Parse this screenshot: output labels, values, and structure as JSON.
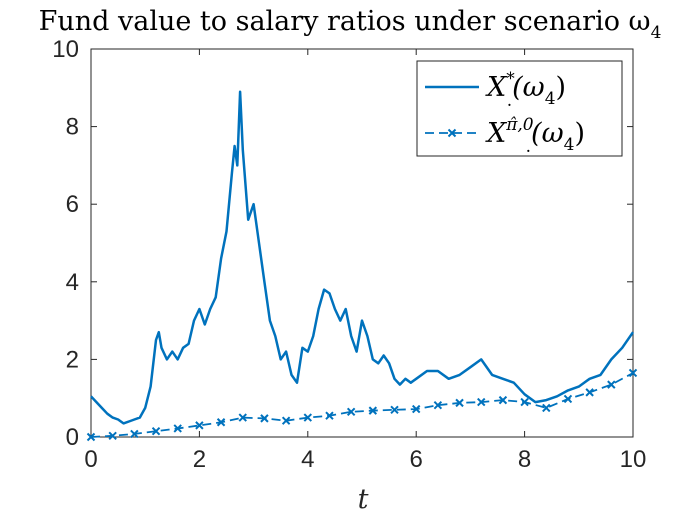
{
  "chart_data": {
    "type": "line",
    "title": "Fund value to salary ratios under scenario ω",
    "title_subscript": "4",
    "xlabel": "t",
    "ylabel": "",
    "xlim": [
      0,
      10
    ],
    "ylim": [
      0,
      10
    ],
    "xticks": [
      "0",
      "2",
      "4",
      "6",
      "8",
      "10"
    ],
    "yticks": [
      "0",
      "2",
      "4",
      "6",
      "8",
      "10"
    ],
    "grid": false,
    "legend_position": "top-right",
    "color": "#0072BD",
    "series": [
      {
        "name": "X*(ω₄)",
        "legend": {
          "base": "X",
          "sub": ".",
          "sup": "*",
          "arg": "(ω",
          "arg_sub": "4",
          "close": ")"
        },
        "line_style": "solid",
        "marker": "none",
        "x": [
          0,
          0.1,
          0.2,
          0.3,
          0.4,
          0.5,
          0.6,
          0.7,
          0.8,
          0.9,
          1.0,
          1.1,
          1.2,
          1.25,
          1.3,
          1.4,
          1.5,
          1.6,
          1.7,
          1.8,
          1.9,
          2.0,
          2.1,
          2.2,
          2.3,
          2.4,
          2.5,
          2.6,
          2.65,
          2.7,
          2.75,
          2.8,
          2.9,
          3.0,
          3.1,
          3.2,
          3.3,
          3.4,
          3.5,
          3.6,
          3.7,
          3.8,
          3.9,
          4.0,
          4.1,
          4.2,
          4.3,
          4.4,
          4.5,
          4.6,
          4.7,
          4.8,
          4.9,
          5.0,
          5.1,
          5.2,
          5.3,
          5.4,
          5.5,
          5.6,
          5.7,
          5.8,
          5.9,
          6.0,
          6.2,
          6.4,
          6.6,
          6.8,
          7.0,
          7.2,
          7.4,
          7.6,
          7.8,
          8.0,
          8.2,
          8.4,
          8.6,
          8.8,
          9.0,
          9.2,
          9.4,
          9.6,
          9.8,
          10.0
        ],
        "y": [
          1.05,
          0.9,
          0.75,
          0.6,
          0.5,
          0.45,
          0.35,
          0.4,
          0.45,
          0.5,
          0.75,
          1.3,
          2.5,
          2.7,
          2.3,
          2.0,
          2.2,
          2.0,
          2.3,
          2.4,
          3.0,
          3.3,
          2.9,
          3.3,
          3.6,
          4.6,
          5.3,
          6.8,
          7.5,
          7.0,
          8.9,
          7.4,
          5.6,
          6.0,
          5.0,
          4.0,
          3.0,
          2.6,
          2.0,
          2.2,
          1.6,
          1.4,
          2.3,
          2.2,
          2.6,
          3.3,
          3.8,
          3.7,
          3.3,
          3.0,
          3.3,
          2.6,
          2.2,
          3.0,
          2.6,
          2.0,
          1.9,
          2.1,
          1.9,
          1.5,
          1.35,
          1.5,
          1.4,
          1.5,
          1.7,
          1.7,
          1.5,
          1.6,
          1.8,
          2.0,
          1.6,
          1.5,
          1.4,
          1.1,
          0.9,
          0.95,
          1.05,
          1.2,
          1.3,
          1.5,
          1.6,
          2.0,
          2.3,
          2.7
        ]
      },
      {
        "name": "X^{π̂,0}(ω₄)",
        "legend": {
          "base": "X",
          "sub": ".",
          "sup": "π̂,0",
          "arg": "(ω",
          "arg_sub": "4",
          "close": ")"
        },
        "line_style": "dashed",
        "marker": "x",
        "x": [
          0,
          0.4,
          0.8,
          1.2,
          1.6,
          2.0,
          2.4,
          2.8,
          3.2,
          3.6,
          4.0,
          4.4,
          4.8,
          5.2,
          5.6,
          6.0,
          6.4,
          6.8,
          7.2,
          7.6,
          8.0,
          8.4,
          8.8,
          9.2,
          9.6,
          10.0
        ],
        "y": [
          0.0,
          0.03,
          0.08,
          0.15,
          0.22,
          0.3,
          0.38,
          0.5,
          0.48,
          0.42,
          0.5,
          0.55,
          0.65,
          0.68,
          0.7,
          0.72,
          0.82,
          0.88,
          0.9,
          0.95,
          0.9,
          0.75,
          0.98,
          1.15,
          1.35,
          1.65
        ]
      }
    ]
  }
}
